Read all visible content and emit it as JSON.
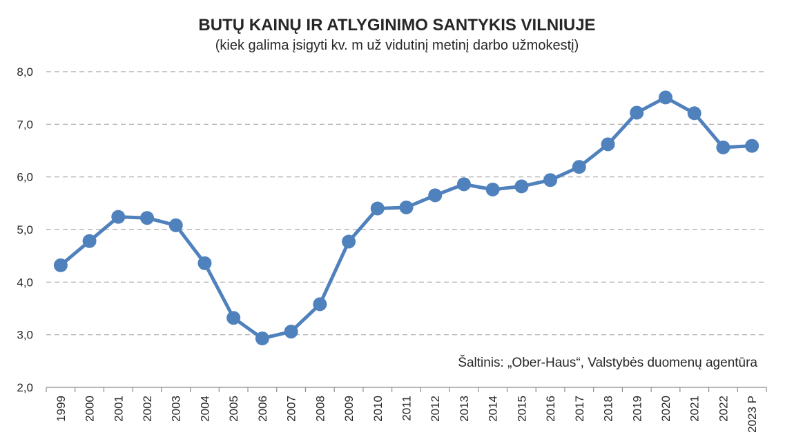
{
  "chart_data": {
    "type": "line",
    "title": "BUTŲ KAINŲ IR ATLYGINIMO SANTYKIS VILNIUJE",
    "subtitle": "(kiek galima įsigyti kv. m už vidutinį metinį darbo užmokestį)",
    "source": "Šaltinis: „Ober-Haus“, Valstybės duomenų agentūra",
    "categories": [
      "1999",
      "2000",
      "2001",
      "2002",
      "2003",
      "2004",
      "2005",
      "2006",
      "2007",
      "2008",
      "2009",
      "2010",
      "2011",
      "2012",
      "2013",
      "2014",
      "2015",
      "2016",
      "2017",
      "2018",
      "2019",
      "2020",
      "2021",
      "2022",
      "2023 P"
    ],
    "values": [
      4.32,
      4.78,
      5.24,
      5.22,
      5.08,
      4.36,
      3.32,
      2.93,
      3.06,
      3.58,
      4.77,
      5.4,
      5.42,
      5.65,
      5.86,
      5.76,
      5.82,
      5.94,
      6.19,
      6.62,
      7.22,
      7.51,
      7.21,
      6.56,
      6.59
    ],
    "ylim": [
      2.0,
      8.0
    ],
    "yticks": [
      2.0,
      3.0,
      4.0,
      5.0,
      6.0,
      7.0,
      8.0
    ],
    "ytick_labels": [
      "2,0",
      "3,0",
      "4,0",
      "5,0",
      "6,0",
      "7,0",
      "8,0"
    ],
    "xlabel": "",
    "ylabel": "",
    "grid": true,
    "line_color": "#4f81bd",
    "text_color": "#262626"
  }
}
